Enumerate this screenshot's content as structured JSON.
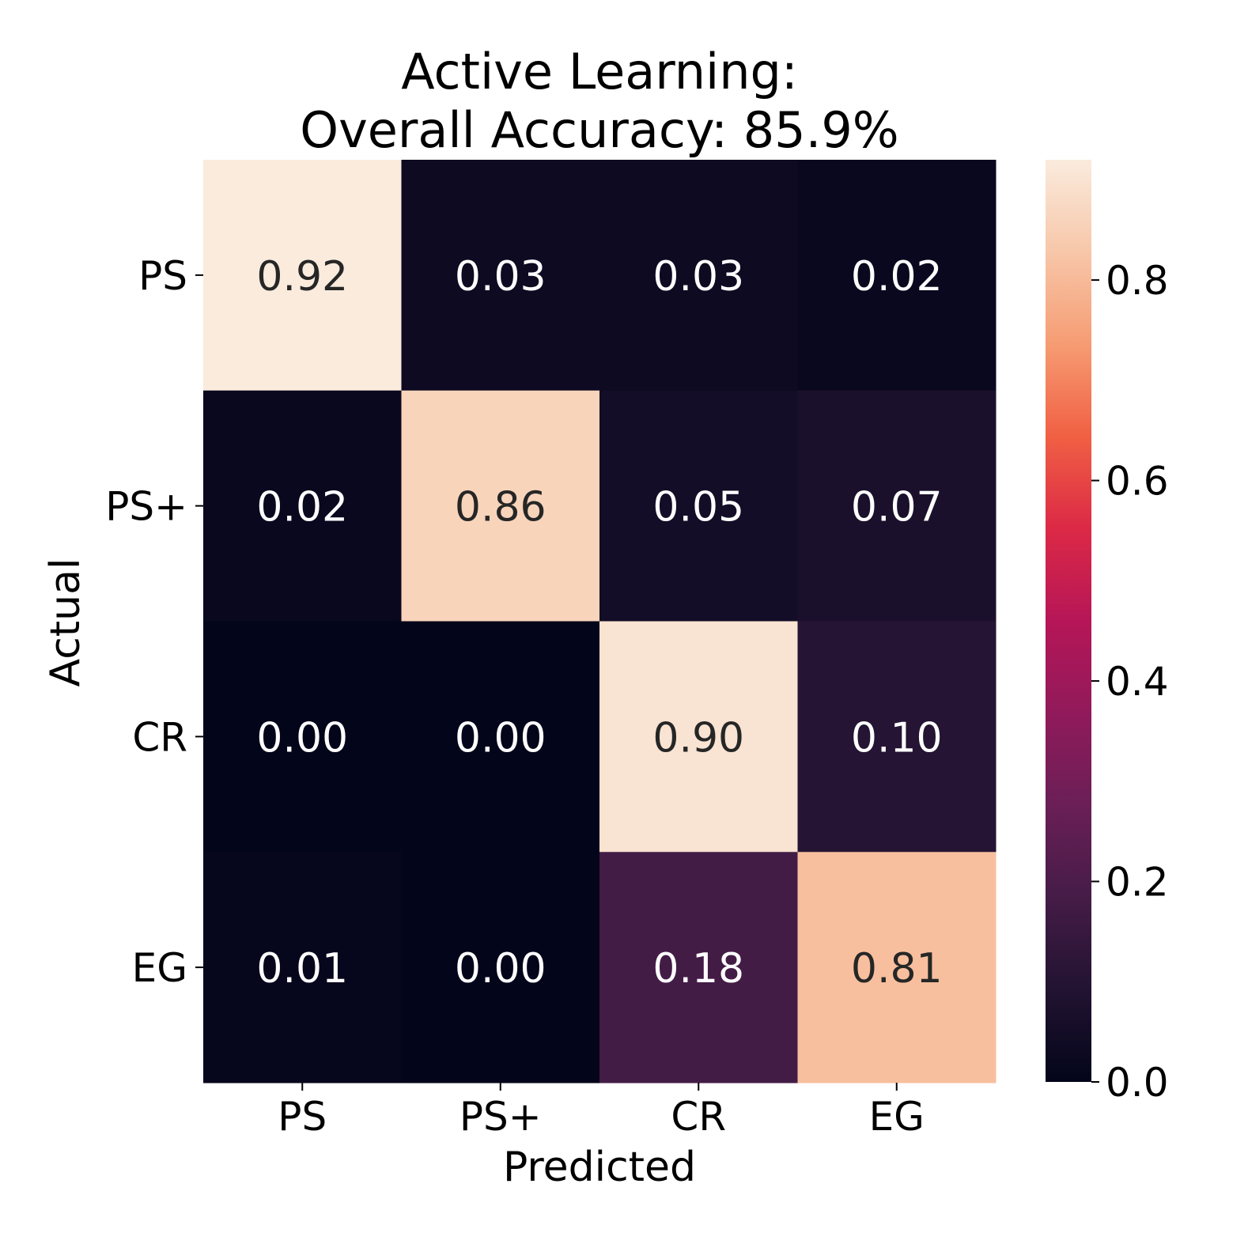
{
  "chart_data": {
    "type": "heatmap",
    "title_lines": [
      "Active Learning:",
      "Overall Accuracy: 85.9%"
    ],
    "xlabel": "Predicted",
    "ylabel": "Actual",
    "x_categories": [
      "PS",
      "PS+",
      "CR",
      "EG"
    ],
    "y_categories": [
      "PS",
      "PS+",
      "CR",
      "EG"
    ],
    "values": [
      [
        0.92,
        0.03,
        0.03,
        0.02
      ],
      [
        0.02,
        0.86,
        0.05,
        0.07
      ],
      [
        0.0,
        0.0,
        0.9,
        0.1
      ],
      [
        0.01,
        0.0,
        0.18,
        0.81
      ]
    ],
    "value_format": "0.00",
    "colorscale": "rocket",
    "colorbar": {
      "range": [
        0.0,
        0.92
      ],
      "ticks": [
        0.0,
        0.2,
        0.4,
        0.6,
        0.8
      ],
      "tick_labels": [
        "0.0",
        "0.2",
        "0.4",
        "0.6",
        "0.8"
      ]
    }
  }
}
